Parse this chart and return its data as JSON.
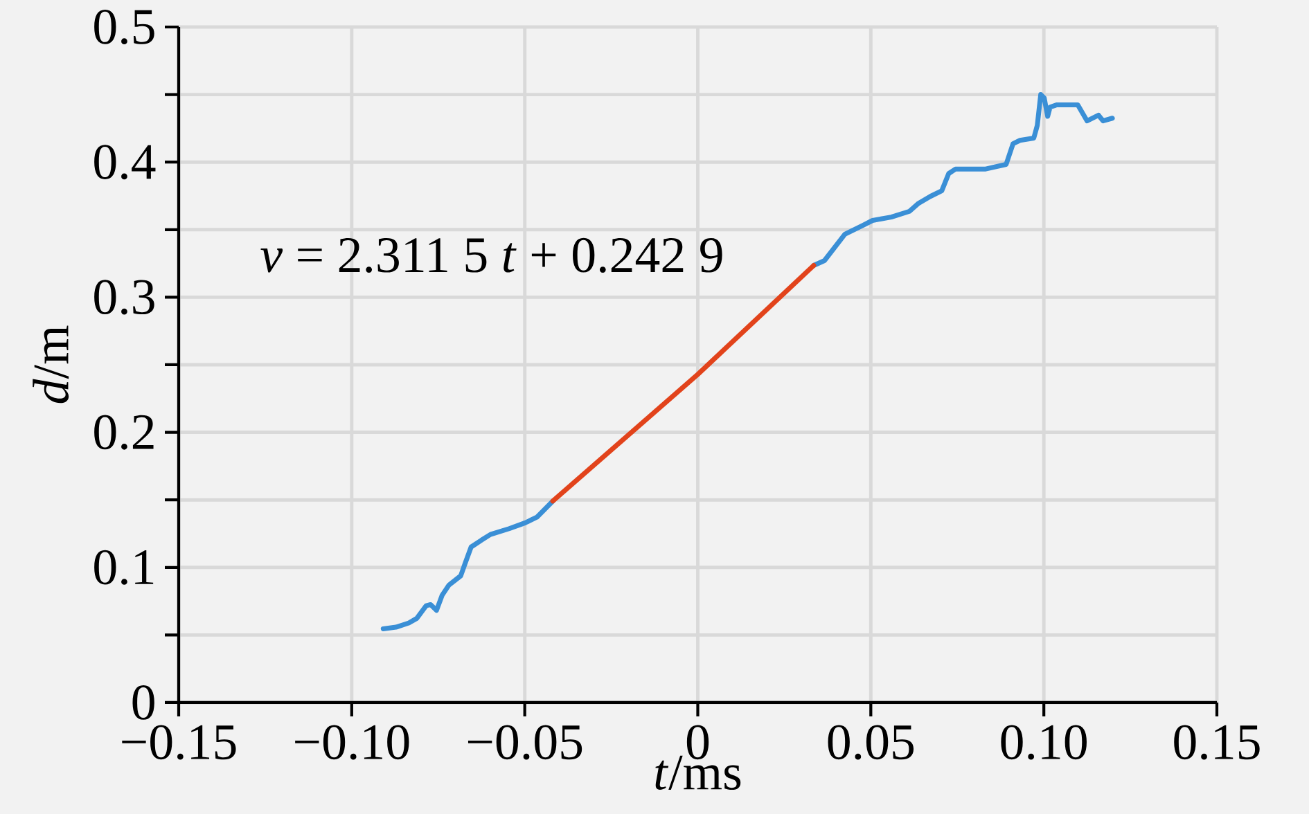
{
  "chart_data": {
    "type": "line",
    "xlabel": "*t*/ms",
    "ylabel": "*d*/m",
    "annotations": [
      "*v* = 2.311 5 *t* + 0.242 9"
    ],
    "xlim": [
      -0.15,
      0.15
    ],
    "ylim": [
      0,
      0.5
    ],
    "xticks": [
      {
        "value": -0.15,
        "label": "−0.15"
      },
      {
        "value": -0.1,
        "label": "−0.10"
      },
      {
        "value": -0.05,
        "label": "−0.05"
      },
      0,
      0.05,
      {
        "value": 0.1,
        "label": "0.10"
      },
      0.15
    ],
    "yticks": [
      0,
      {
        "value": 0.05,
        "label": null
      },
      0.1,
      {
        "value": 0.15,
        "label": null
      },
      0.2,
      {
        "value": 0.25,
        "label": null
      },
      0.3,
      {
        "value": 0.35,
        "label": null
      },
      0.4,
      {
        "value": 0.45,
        "label": null
      },
      0.5
    ],
    "grid": true,
    "marker": "none",
    "series": [
      {
        "color": "#3a8fd6",
        "x": [
          -0.0909,
          -0.0872,
          -0.0835,
          -0.0812,
          -0.0785,
          -0.0772,
          -0.0755,
          -0.0739,
          -0.0719,
          -0.0685,
          -0.0672,
          -0.0655,
          -0.0625,
          -0.0599,
          -0.0545,
          -0.0499,
          -0.0465,
          -0.0419,
          0,
          0.0335,
          0.0366,
          0.0425,
          0.0479,
          0.0505,
          0.0559,
          0.0612,
          0.0638,
          0.0672,
          0.0705,
          0.0725,
          0.0745,
          0.0832,
          0.0891,
          0.0911,
          0.0931,
          0.0971,
          0.0981,
          0.0991,
          0.1001,
          0.1011,
          0.1018,
          0.1038,
          0.1098,
          0.1125,
          0.1158,
          0.1171,
          0.1198
        ],
        "values": [
          0.0546,
          0.0558,
          0.0589,
          0.0623,
          0.0716,
          0.0725,
          0.0682,
          0.0793,
          0.087,
          0.0938,
          0.1032,
          0.1151,
          0.1202,
          0.1244,
          0.1287,
          0.133,
          0.1372,
          0.1491,
          null,
          0.3235,
          0.3271,
          0.3466,
          0.3534,
          0.3568,
          0.3593,
          0.3636,
          0.3695,
          0.3746,
          0.3788,
          0.3915,
          0.3949,
          0.3949,
          0.3983,
          0.4136,
          0.4161,
          0.4178,
          0.4271,
          0.45,
          0.4475,
          0.4339,
          0.4407,
          0.4424,
          0.4424,
          0.4305,
          0.4347,
          0.4305,
          0.4325
        ]
      },
      {
        "color": "#e2431b",
        "x": [
          -0.0419,
          0,
          0.0335
        ],
        "values": [
          0.1491,
          0.2429,
          0.3235
        ]
      }
    ]
  }
}
